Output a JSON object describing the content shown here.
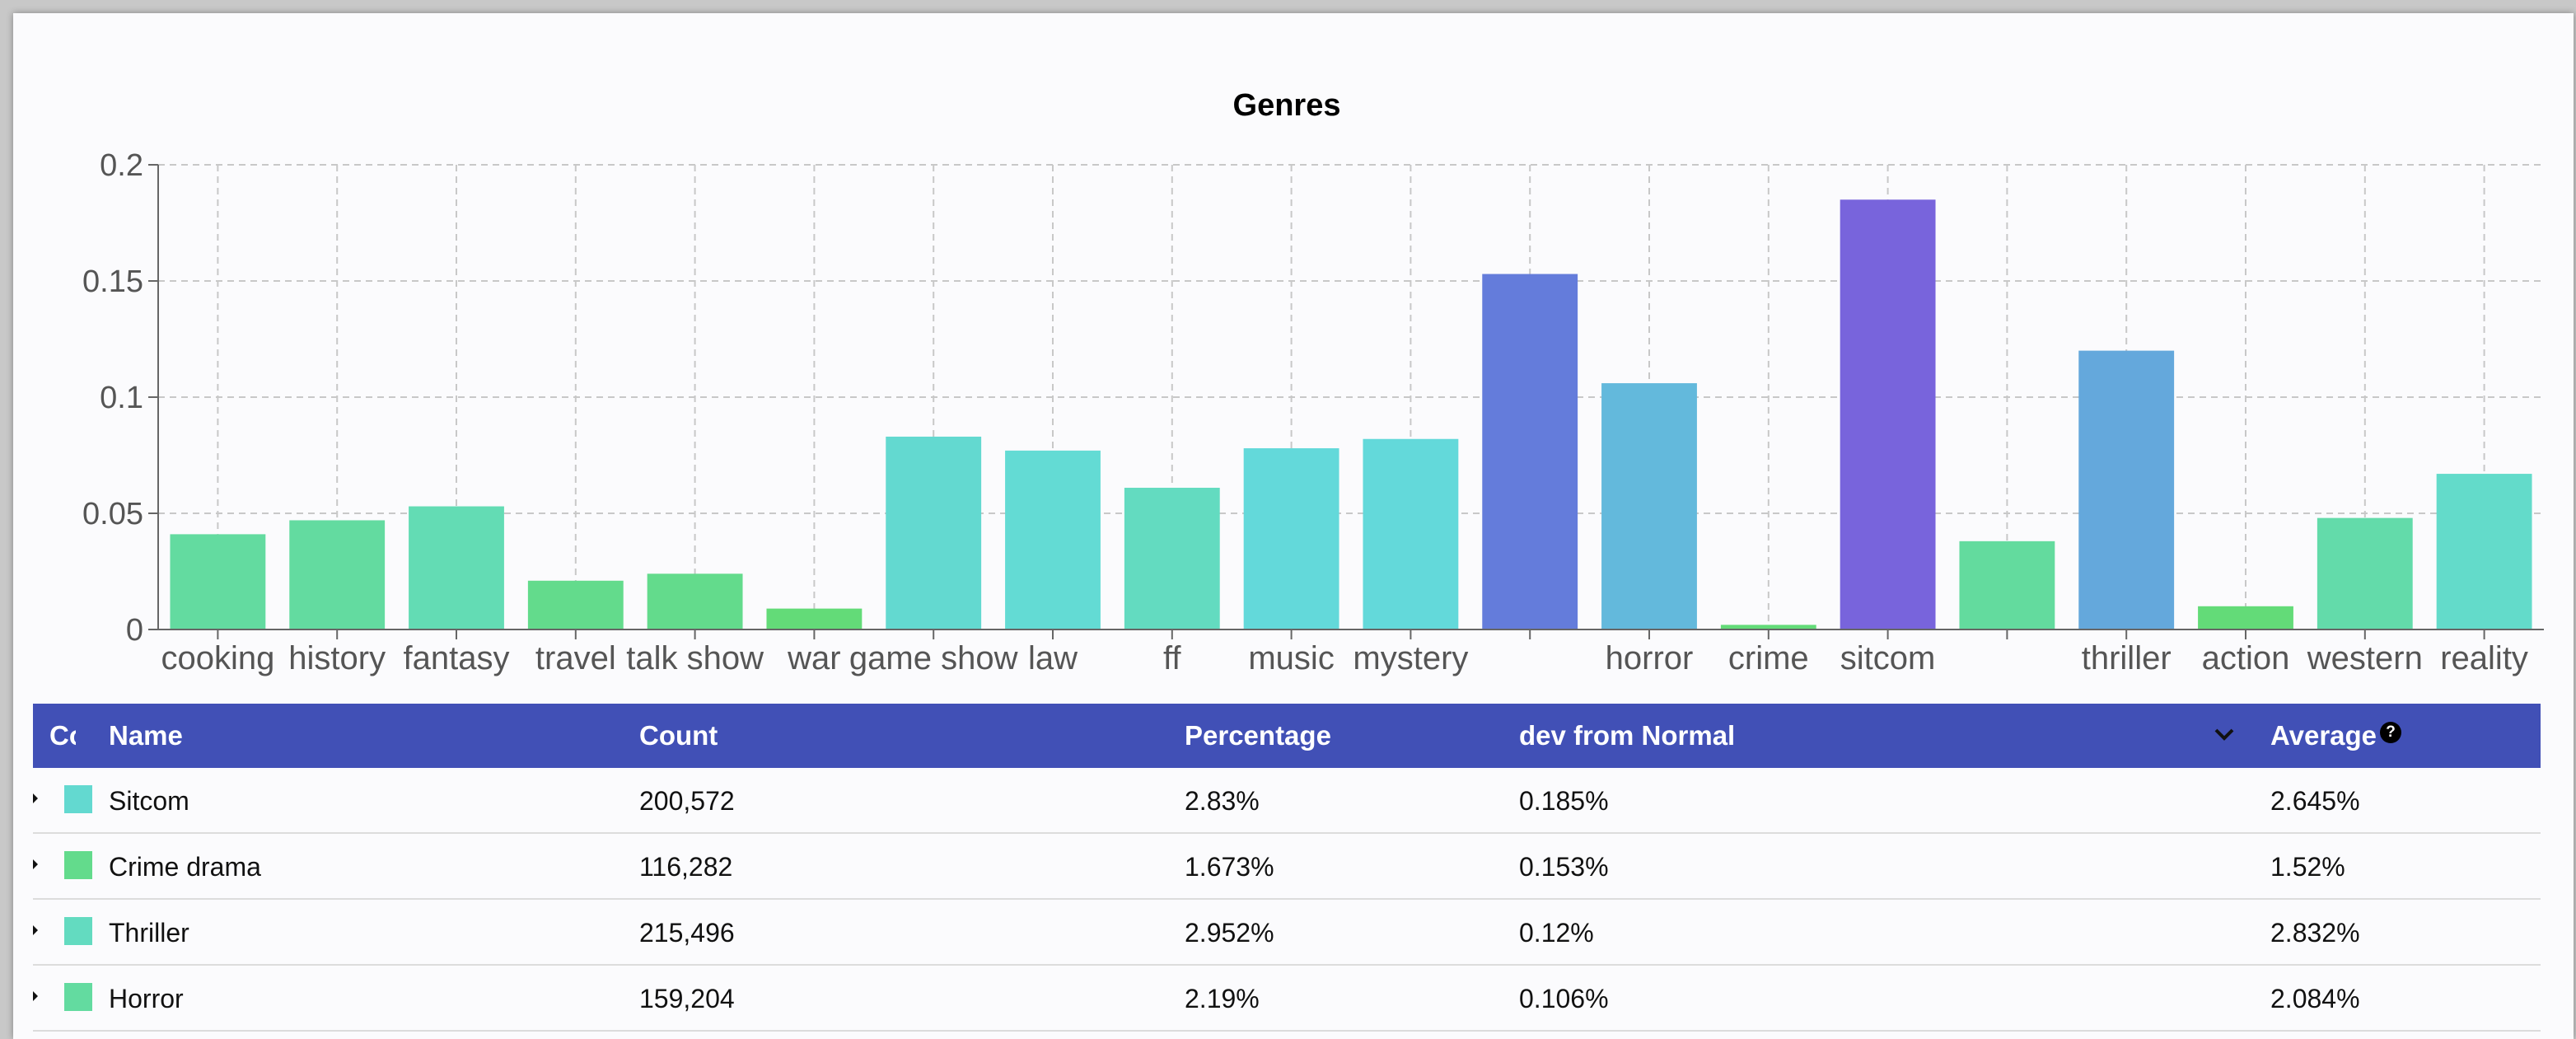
{
  "chart_data": {
    "type": "bar",
    "title": "Genres",
    "xlabel": "",
    "ylabel": "",
    "ylim": [
      0,
      0.2
    ],
    "yticks": [
      0,
      0.05,
      0.1,
      0.15,
      0.2
    ],
    "ytick_labels": [
      "0",
      "0.05",
      "0.1",
      "0.15",
      "0.2"
    ],
    "grid": true,
    "categories": [
      "cooking",
      "history",
      "fantasy",
      "travel",
      "talk show",
      "war",
      "game show",
      "law",
      "ff",
      "music",
      "mystery",
      "",
      "horror",
      "crime",
      "sitcom",
      "",
      "thriller",
      "action",
      "western",
      "reality"
    ],
    "values": [
      0.041,
      0.047,
      0.053,
      0.021,
      0.024,
      0.009,
      0.083,
      0.077,
      0.061,
      0.078,
      0.082,
      0.153,
      0.106,
      0.002,
      0.185,
      0.038,
      0.12,
      0.01,
      0.048,
      0.067
    ],
    "colors": [
      "#63dba0",
      "#63dba0",
      "#63dcb4",
      "#63db8c",
      "#63db8c",
      "#63db78",
      "#63d9d0",
      "#63dbd4",
      "#63dbc0",
      "#63d9da",
      "#63d9da",
      "#647cdb",
      "#63b9dc",
      "#63db78",
      "#7864dc",
      "#63db9e",
      "#64a8dc",
      "#63db78",
      "#63dbaa",
      "#63dbca"
    ]
  },
  "table": {
    "columns": [
      "Co",
      "Name",
      "Count",
      "Percentage",
      "dev from Normal",
      "Average"
    ],
    "help_icon_label": "?",
    "sort_icon": "chevron-down-icon",
    "rows": [
      {
        "color": "#63d9d0",
        "name": "Sitcom",
        "count": "200,572",
        "percentage": "2.83%",
        "dev": "0.185%",
        "average": "2.645%"
      },
      {
        "color": "#63db8c",
        "name": "Crime drama",
        "count": "116,282",
        "percentage": "1.673%",
        "dev": "0.153%",
        "average": "1.52%"
      },
      {
        "color": "#63dbc0",
        "name": "Thriller",
        "count": "215,496",
        "percentage": "2.952%",
        "dev": "0.12%",
        "average": "2.832%"
      },
      {
        "color": "#63dba0",
        "name": "Horror",
        "count": "159,204",
        "percentage": "2.19%",
        "dev": "0.106%",
        "average": "2.084%"
      }
    ]
  }
}
